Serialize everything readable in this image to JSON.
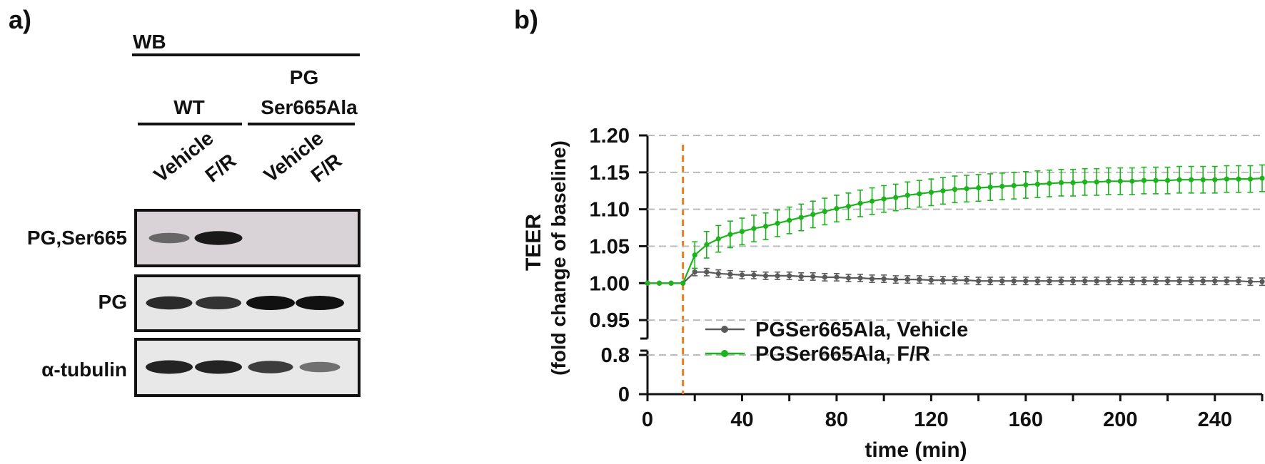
{
  "panel_a": {
    "panel_label": "a)",
    "method_label": "WB",
    "group_wt": "WT",
    "group_mut_line1": "PG",
    "group_mut_line2": "Ser665Ala",
    "lanes": [
      "Vehicle",
      "F/R",
      "Vehicle",
      "F/R"
    ],
    "blots": [
      {
        "label": "PG,Ser665",
        "band_intensity": [
          0.45,
          0.95,
          0.0,
          0.0
        ],
        "background": "#d9d2d6"
      },
      {
        "label": "PG",
        "band_intensity": [
          0.85,
          0.8,
          1.0,
          1.0
        ],
        "background": "#e6e6e6"
      },
      {
        "label": "α-tubulin",
        "band_intensity": [
          0.9,
          0.9,
          0.75,
          0.45
        ],
        "background": "#e8e8e8"
      }
    ]
  },
  "panel_b": {
    "panel_label": "b)"
  },
  "chart_data": {
    "type": "line",
    "title": "",
    "xlabel": "time (min)",
    "ylabel_line1": "TEER",
    "ylabel_line2": "(fold change of baseline)",
    "xlim": [
      0,
      260
    ],
    "x_ticks": [
      0,
      40,
      80,
      120,
      160,
      200,
      240
    ],
    "y_axis_break": true,
    "y_upper_range": [
      0.925,
      1.2
    ],
    "y_upper_ticks": [
      "1.20",
      "1.15",
      "1.10",
      "1.05",
      "1.00",
      "0.95"
    ],
    "y_lower_ticks": [
      "0.8",
      "0"
    ],
    "gridlines_dashed": [
      1.2,
      1.15,
      1.1,
      1.05,
      0.95,
      0.8
    ],
    "treatment_marker_x": 15,
    "legend_position": "lower-left",
    "series": [
      {
        "name": "PGSer665Ala, Vehicle",
        "color": "#5a5a5a",
        "x": [
          0,
          5,
          10,
          15,
          20,
          25,
          30,
          35,
          40,
          45,
          50,
          55,
          60,
          65,
          70,
          75,
          80,
          85,
          90,
          95,
          100,
          105,
          110,
          115,
          120,
          125,
          130,
          135,
          140,
          145,
          150,
          155,
          160,
          165,
          170,
          175,
          180,
          185,
          190,
          195,
          200,
          205,
          210,
          215,
          220,
          225,
          230,
          235,
          240,
          245,
          250,
          255,
          260
        ],
        "values": [
          1.0,
          1.0,
          1.0,
          1.0,
          1.015,
          1.015,
          1.013,
          1.012,
          1.011,
          1.011,
          1.01,
          1.01,
          1.01,
          1.009,
          1.009,
          1.008,
          1.008,
          1.007,
          1.007,
          1.006,
          1.006,
          1.005,
          1.005,
          1.005,
          1.004,
          1.004,
          1.004,
          1.004,
          1.003,
          1.003,
          1.003,
          1.003,
          1.003,
          1.003,
          1.003,
          1.003,
          1.003,
          1.003,
          1.003,
          1.003,
          1.003,
          1.003,
          1.003,
          1.003,
          1.003,
          1.003,
          1.003,
          1.003,
          1.003,
          1.003,
          1.003,
          1.002,
          1.002
        ],
        "error": 0.005
      },
      {
        "name": "PGSer665Ala, F/R",
        "color": "#1db31d",
        "x": [
          0,
          5,
          10,
          15,
          20,
          25,
          30,
          35,
          40,
          45,
          50,
          55,
          60,
          65,
          70,
          75,
          80,
          85,
          90,
          95,
          100,
          105,
          110,
          115,
          120,
          125,
          130,
          135,
          140,
          145,
          150,
          155,
          160,
          165,
          170,
          175,
          180,
          185,
          190,
          195,
          200,
          205,
          210,
          215,
          220,
          225,
          230,
          235,
          240,
          245,
          250,
          255,
          260
        ],
        "values": [
          1.0,
          1.0,
          1.0,
          1.0,
          1.038,
          1.052,
          1.06,
          1.066,
          1.07,
          1.074,
          1.077,
          1.081,
          1.085,
          1.089,
          1.093,
          1.097,
          1.101,
          1.104,
          1.108,
          1.111,
          1.114,
          1.116,
          1.119,
          1.121,
          1.123,
          1.125,
          1.127,
          1.128,
          1.129,
          1.13,
          1.131,
          1.132,
          1.133,
          1.134,
          1.135,
          1.136,
          1.136,
          1.137,
          1.137,
          1.138,
          1.138,
          1.138,
          1.139,
          1.139,
          1.139,
          1.14,
          1.14,
          1.14,
          1.14,
          1.141,
          1.141,
          1.141,
          1.142
        ],
        "error": 0.018
      }
    ]
  }
}
